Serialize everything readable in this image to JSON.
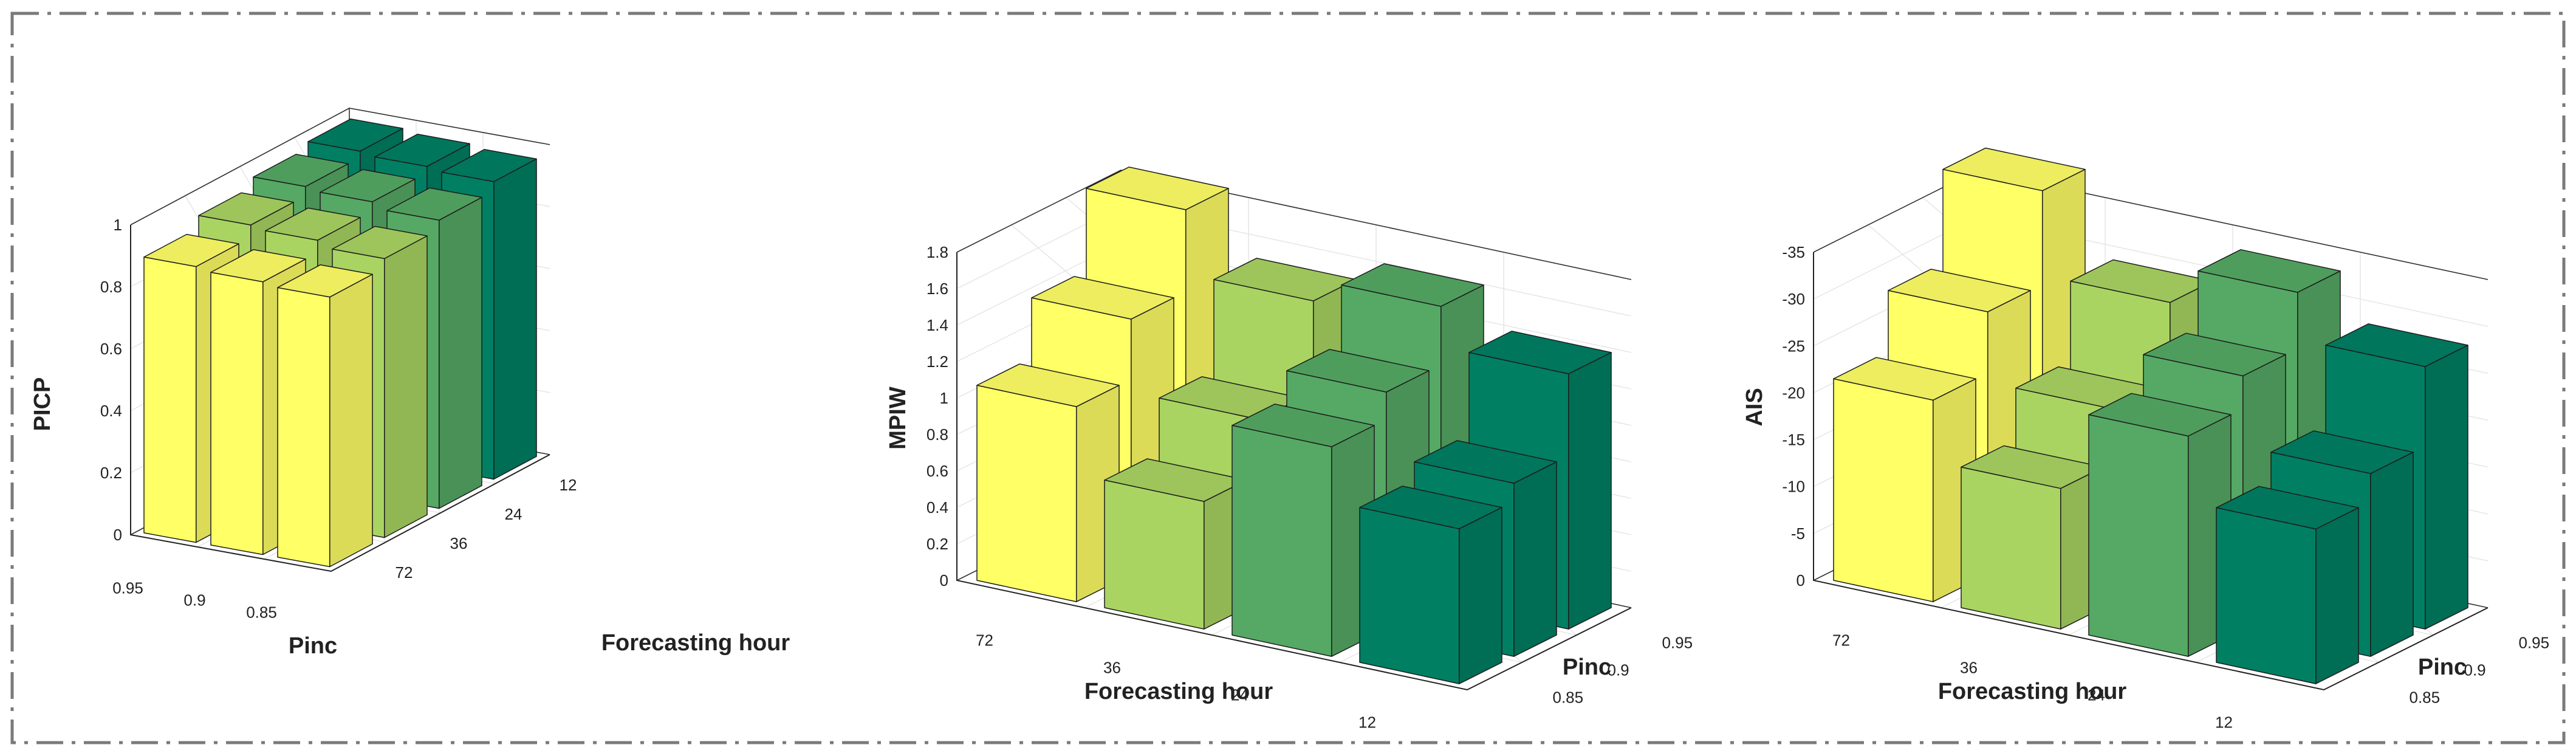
{
  "colors": {
    "series": [
      "#ffff66",
      "#a9d462",
      "#55a964",
      "#007f63"
    ],
    "frame": "#7a7a7a",
    "edge": "#1c1c1c"
  },
  "chart_data": [
    {
      "type": "bar3d",
      "ylabel": "PICP",
      "xlabel": "Pinc",
      "zlabel": "Forecasting hour",
      "pinc_ticks": [
        "0.95",
        "0.9",
        "0.85"
      ],
      "hour_ticks": [
        "72",
        "36",
        "24",
        "12"
      ],
      "zticks": [
        "0",
        "0.2",
        "0.4",
        "0.6",
        "0.8",
        "1"
      ],
      "zlim": [
        0,
        1
      ],
      "series": [
        {
          "hour": "72",
          "color": "#ffff66",
          "values": [
            0.89,
            0.88,
            0.87
          ]
        },
        {
          "hour": "36",
          "color": "#a9d462",
          "values": [
            0.93,
            0.92,
            0.9
          ]
        },
        {
          "hour": "24",
          "color": "#55a964",
          "values": [
            0.96,
            0.95,
            0.93
          ]
        },
        {
          "hour": "12",
          "color": "#007f63",
          "values": [
            0.98,
            0.97,
            0.96
          ]
        }
      ],
      "grid": true
    },
    {
      "type": "bar3d",
      "ylabel": "MPIW",
      "xlabel": "Forecasting hour",
      "zlabel": "Pinc",
      "hour_ticks": [
        "72",
        "36",
        "24",
        "12"
      ],
      "pinc_ticks": [
        "0.85",
        "0.9",
        "0.95"
      ],
      "zticks": [
        "0",
        "0.2",
        "0.4",
        "0.6",
        "0.8",
        "1",
        "1.2",
        "1.4",
        "1.6",
        "1.8"
      ],
      "zlim": [
        0,
        1.8
      ],
      "series": [
        {
          "hour": "72",
          "color": "#ffff66",
          "values": [
            1.07,
            1.4,
            1.85
          ]
        },
        {
          "hour": "36",
          "color": "#a9d462",
          "values": [
            0.7,
            1.0,
            1.5
          ]
        },
        {
          "hour": "24",
          "color": "#55a964",
          "values": [
            1.15,
            1.3,
            1.62
          ]
        },
        {
          "hour": "12",
          "color": "#007f63",
          "values": [
            0.85,
            0.95,
            1.4
          ]
        }
      ],
      "grid": true
    },
    {
      "type": "bar3d",
      "ylabel": "AIS",
      "xlabel": "Forecasting hour",
      "zlabel": "Pinc",
      "hour_ticks": [
        "72",
        "36",
        "24",
        "12"
      ],
      "pinc_ticks": [
        "0.85",
        "0.9",
        "0.95"
      ],
      "zticks": [
        "0",
        "-5",
        "-10",
        "-15",
        "-20",
        "-25",
        "-30",
        "-35"
      ],
      "zlim": [
        0,
        -35
      ],
      "series": [
        {
          "hour": "72",
          "color": "#ffff66",
          "values": [
            -21.5,
            -28.0,
            -38.0
          ]
        },
        {
          "hour": "36",
          "color": "#a9d462",
          "values": [
            -15.0,
            -20.5,
            -29.0
          ]
        },
        {
          "hour": "24",
          "color": "#55a964",
          "values": [
            -23.5,
            -27.0,
            -33.0
          ]
        },
        {
          "hour": "12",
          "color": "#007f63",
          "values": [
            -16.5,
            -19.5,
            -28.0
          ]
        }
      ],
      "grid": true
    }
  ]
}
